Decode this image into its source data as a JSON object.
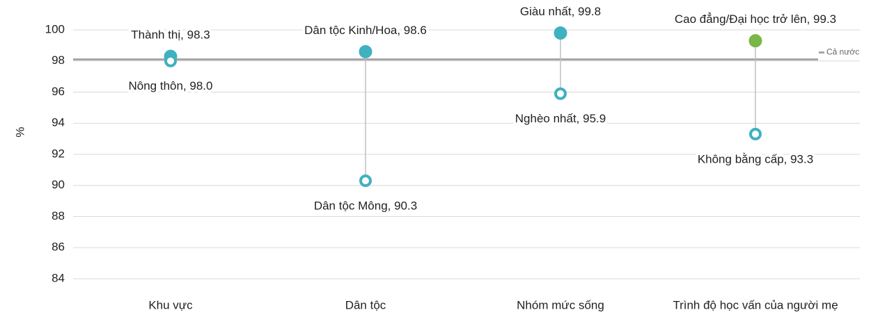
{
  "chart_data": {
    "type": "dumbbell",
    "ylabel": "%",
    "categories": [
      "Khu vực",
      "Dân tộc",
      "Nhóm mức sống",
      "Trình độ học vấn của người mẹ"
    ],
    "series": [
      {
        "colors": [
          "#3fb1c0",
          "#3fb1c0",
          "#3fb1c0",
          "#7ab648"
        ],
        "filled": true,
        "values": [
          98.3,
          98.6,
          99.8,
          99.3
        ],
        "value_labels": [
          "Thành thị, 98.3",
          "Dân tộc Kinh/Hoa, 98.6",
          "Giàu nhất, 99.8",
          "Cao đẳng/Đại học trở lên, 99.3"
        ]
      },
      {
        "colors": [
          "#3fb1c0",
          "#3fb1c0",
          "#3fb1c0",
          "#3fb1c0"
        ],
        "filled": false,
        "values": [
          98.0,
          90.3,
          95.9,
          93.3
        ],
        "value_labels": [
          "Nông thôn, 98.0",
          "Dân tộc Mông, 90.3",
          "Nghèo nhất, 95.9",
          "Không bằng cấp, 93.3"
        ]
      }
    ],
    "reference": {
      "name": "Cả nước",
      "value": 98.1,
      "color": "#a6a6a6"
    },
    "ylim": [
      84,
      100
    ],
    "yticks": [
      84,
      86,
      88,
      90,
      92,
      94,
      96,
      98,
      100
    ],
    "grid": true
  }
}
